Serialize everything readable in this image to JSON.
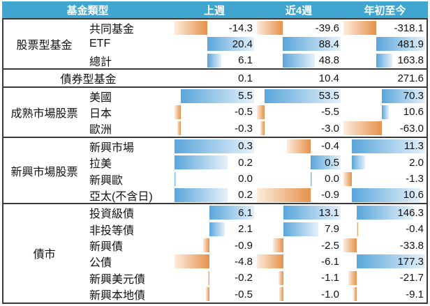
{
  "colors": {
    "header_background": "#41a6cf",
    "header_text": "#ffffff",
    "positive_bar": "#5aa6db",
    "negative_bar": "#e6914a",
    "border": "#3a3a3a",
    "text": "#111111"
  },
  "chart_data": {
    "type": "table",
    "header": {
      "category": "基金類型",
      "columns": [
        "上週",
        "近4週",
        "年初至今"
      ]
    },
    "groups": [
      {
        "category": "股票型基金",
        "data_bars": true,
        "rows": [
          {
            "name": "共同基金",
            "values": [
              "-14.3",
              "-39.6",
              "-318.1"
            ]
          },
          {
            "name": "ETF",
            "values": [
              "20.4",
              "88.4",
              "481.9"
            ]
          },
          {
            "name": "總計",
            "values": [
              "6.1",
              "48.8",
              "163.8"
            ]
          }
        ]
      },
      {
        "category": "債券型基金",
        "data_bars": false,
        "rows": [
          {
            "values": [
              "0.1",
              "10.4",
              "271.6"
            ]
          }
        ]
      },
      {
        "category": "成熟市場股票",
        "data_bars": true,
        "rows": [
          {
            "name": "美國",
            "values": [
              "5.5",
              "53.5",
              "70.3"
            ]
          },
          {
            "name": "日本",
            "values": [
              "-0.5",
              "-5.5",
              "10.6"
            ]
          },
          {
            "name": "歐洲",
            "values": [
              "-0.3",
              "-3.0",
              "-63.0"
            ]
          }
        ]
      },
      {
        "category": "新興市場股票",
        "data_bars": true,
        "rows": [
          {
            "name": "新興市場",
            "values": [
              "0.3",
              "-0.4",
              "11.3"
            ]
          },
          {
            "name": "拉美",
            "values": [
              "0.2",
              "0.5",
              "2.0"
            ]
          },
          {
            "name": "新興歐",
            "values": [
              "0.0",
              "0.0",
              "-1.3"
            ]
          },
          {
            "name": "亞太(不含日)",
            "values": [
              "0.2",
              "-0.9",
              "10.6"
            ]
          }
        ]
      },
      {
        "category": "債市",
        "data_bars": true,
        "rows": [
          {
            "name": "投資級債",
            "values": [
              "6.1",
              "13.1",
              "146.3"
            ]
          },
          {
            "name": "非投等債",
            "values": [
              "2.1",
              "7.9",
              "-0.4"
            ]
          },
          {
            "name": "新興債",
            "values": [
              "-0.9",
              "-2.5",
              "-33.8"
            ]
          },
          {
            "name": "公債",
            "values": [
              "-4.8",
              "-6.1",
              "177.3"
            ]
          },
          {
            "name": "新興美元債",
            "values": [
              "-0.2",
              "-1.1",
              "-21.7"
            ]
          },
          {
            "name": "新興本地債",
            "values": [
              "-0.5",
              "-1.0",
              "-9.1"
            ]
          }
        ]
      }
    ]
  }
}
